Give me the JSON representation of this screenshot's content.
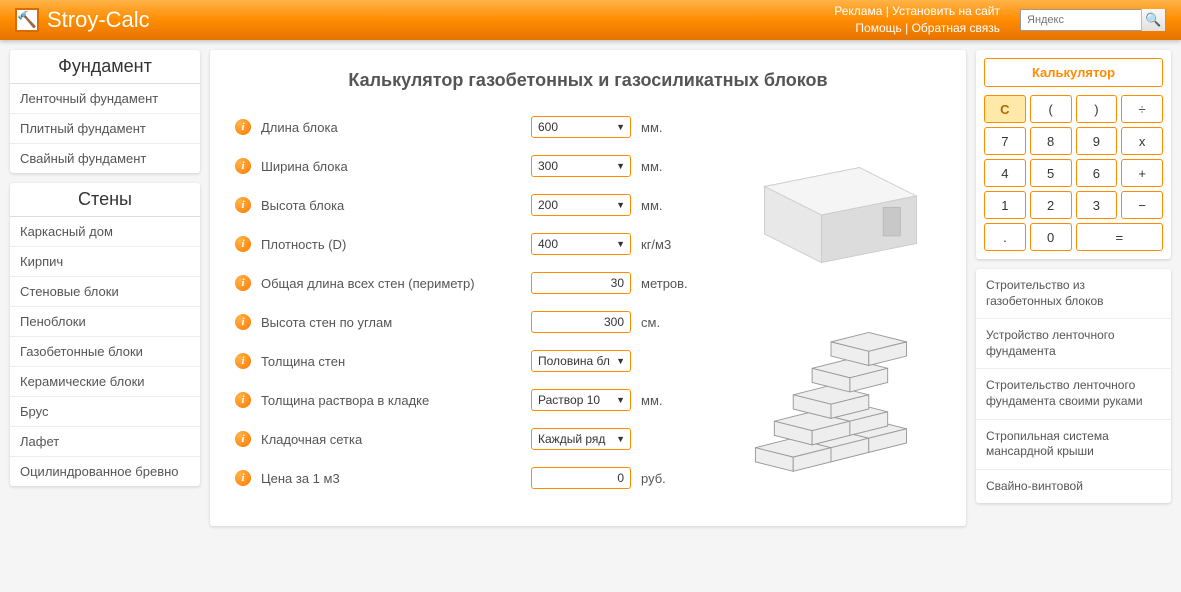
{
  "header": {
    "site_title": "Stroy-Calc",
    "links_row1": {
      "a": "Реклама",
      "b": "Установить на сайт"
    },
    "links_row2": {
      "a": "Помощь",
      "b": "Обратная связь"
    },
    "search_placeholder": "Яндекс"
  },
  "sidebar": {
    "block1": {
      "title": "Фундамент",
      "items": [
        "Ленточный фундамент",
        "Плитный фундамент",
        "Свайный фундамент"
      ]
    },
    "block2": {
      "title": "Стены",
      "items": [
        "Каркасный дом",
        "Кирпич",
        "Стеновые блоки",
        "Пеноблоки",
        "Газобетонные блоки",
        "Керамические блоки",
        "Брус",
        "Лафет",
        "Оцилиндрованное бревно"
      ]
    }
  },
  "main": {
    "title": "Калькулятор газобетонных и газосиликатных блоков",
    "rows": [
      {
        "label": "Длина блока",
        "value": "600",
        "unit": "мм.",
        "type": "select"
      },
      {
        "label": "Ширина блока",
        "value": "300",
        "unit": "мм.",
        "type": "select"
      },
      {
        "label": "Высота блока",
        "value": "200",
        "unit": "мм.",
        "type": "select"
      },
      {
        "label": "Плотность (D)",
        "value": "400",
        "unit": "кг/м3",
        "type": "select"
      },
      {
        "label": "Общая длина всех стен (периметр)",
        "value": "30",
        "unit": "метров.",
        "type": "input"
      },
      {
        "label": "Высота стен по углам",
        "value": "300",
        "unit": "см.",
        "type": "input"
      },
      {
        "label": "Толщина стен",
        "value": "Половина бл",
        "unit": "",
        "type": "select"
      },
      {
        "label": "Толщина раствора в кладке",
        "value": "Раствор 10",
        "unit": "мм.",
        "type": "select"
      },
      {
        "label": "Кладочная сетка",
        "value": "Каждый ряд",
        "unit": "",
        "type": "select"
      },
      {
        "label": "Цена за 1 м3",
        "value": "0",
        "unit": "руб.",
        "type": "input"
      }
    ]
  },
  "calc": {
    "title": "Калькулятор",
    "buttons": [
      "C",
      "(",
      ")",
      "÷",
      "7",
      "8",
      "9",
      "x",
      "4",
      "5",
      "6",
      "+",
      "1",
      "2",
      "3",
      "−",
      ".",
      "0",
      "="
    ]
  },
  "right_links": [
    "Строительство из газобетонных блоков",
    "Устройство ленточного фундамента",
    "Строительство ленточного фундамента своими руками",
    "Стропильная система мансардной крыши",
    "Свайно-винтовой"
  ],
  "colors": {
    "accent": "#ff8c00",
    "header_grad_top": "#ffb347",
    "header_grad_bot": "#e67300"
  }
}
